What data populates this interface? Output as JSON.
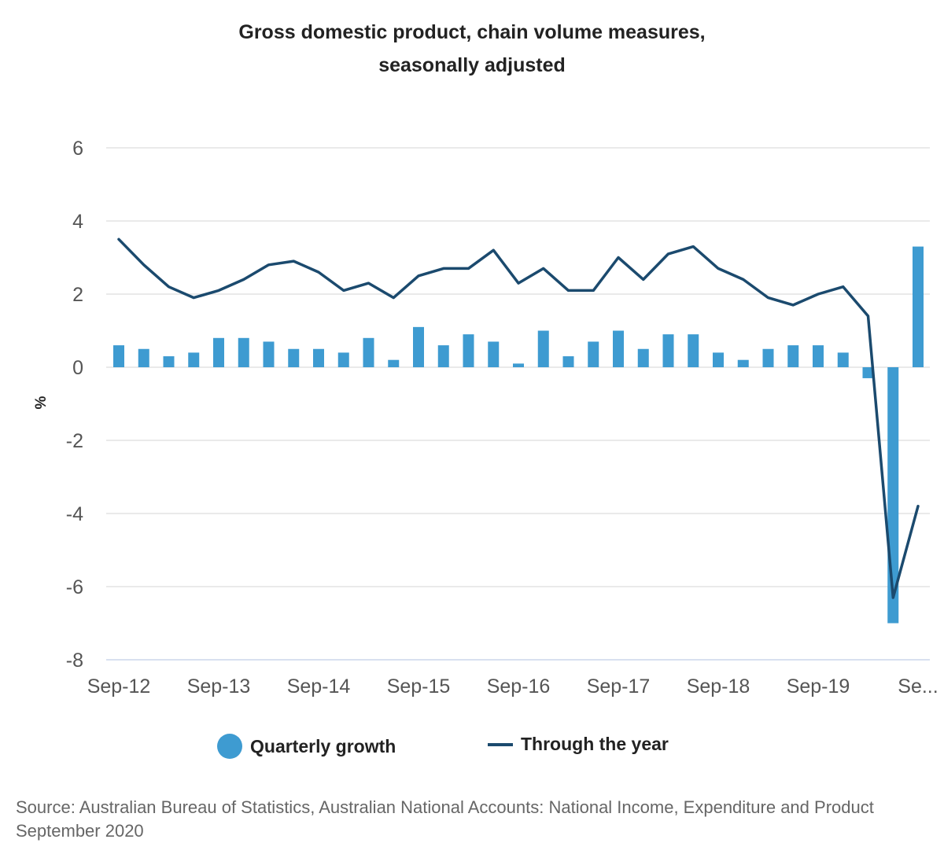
{
  "chart_data": {
    "type": "bar+line",
    "title": "Gross domestic product, chain volume measures, seasonally adjusted",
    "title_lines": [
      "Gross domestic product, chain volume measures,",
      "seasonally adjusted"
    ],
    "xlabel": "",
    "ylabel": "%",
    "ylim": [
      -8,
      6
    ],
    "yticks": [
      6,
      4,
      2,
      0,
      -2,
      -4,
      -6,
      -8
    ],
    "grid": true,
    "legend_position": "bottom-center",
    "categories": [
      "Sep-12",
      "Dec-12",
      "Mar-13",
      "Jun-13",
      "Sep-13",
      "Dec-13",
      "Mar-14",
      "Jun-14",
      "Sep-14",
      "Dec-14",
      "Mar-15",
      "Jun-15",
      "Sep-15",
      "Dec-15",
      "Mar-16",
      "Jun-16",
      "Sep-16",
      "Dec-16",
      "Mar-17",
      "Jun-17",
      "Sep-17",
      "Dec-17",
      "Mar-18",
      "Jun-18",
      "Sep-18",
      "Dec-18",
      "Mar-19",
      "Jun-19",
      "Sep-19",
      "Dec-19",
      "Mar-20",
      "Jun-20",
      "Sep-20"
    ],
    "xtick_labels": [
      {
        "index": 0,
        "label": "Sep-12"
      },
      {
        "index": 4,
        "label": "Sep-13"
      },
      {
        "index": 8,
        "label": "Sep-14"
      },
      {
        "index": 12,
        "label": "Sep-15"
      },
      {
        "index": 16,
        "label": "Sep-16"
      },
      {
        "index": 20,
        "label": "Sep-17"
      },
      {
        "index": 24,
        "label": "Sep-18"
      },
      {
        "index": 28,
        "label": "Sep-19"
      },
      {
        "index": 32,
        "label": "Se..."
      }
    ],
    "series": [
      {
        "name": "Quarterly growth",
        "type": "bar",
        "color": "#3e9bd1",
        "values": [
          0.6,
          0.5,
          0.3,
          0.4,
          0.8,
          0.8,
          0.7,
          0.5,
          0.5,
          0.4,
          0.8,
          0.2,
          1.1,
          0.6,
          0.9,
          0.7,
          0.1,
          1.0,
          0.3,
          0.7,
          1.0,
          0.5,
          0.9,
          0.9,
          0.4,
          0.2,
          0.5,
          0.6,
          0.6,
          0.4,
          -0.3,
          -7.0,
          3.3
        ]
      },
      {
        "name": "Through the year",
        "type": "line",
        "color": "#1b4a6e",
        "values": [
          3.5,
          2.8,
          2.2,
          1.9,
          2.1,
          2.4,
          2.8,
          2.9,
          2.6,
          2.1,
          2.3,
          1.9,
          2.5,
          2.7,
          2.7,
          3.2,
          2.3,
          2.7,
          2.1,
          2.1,
          3.0,
          2.4,
          3.1,
          3.3,
          2.7,
          2.4,
          1.9,
          1.7,
          2.0,
          2.2,
          1.4,
          -6.3,
          -3.8
        ]
      }
    ]
  },
  "legend": {
    "items": [
      {
        "label": "Quarterly growth",
        "symbol": "circle",
        "color": "#3e9bd1"
      },
      {
        "label": "Through the year",
        "symbol": "line",
        "color": "#1b4a6e"
      }
    ]
  },
  "source": "Source: Australian Bureau of Statistics, Australian National Accounts: National Income, Expenditure and Product September 2020"
}
